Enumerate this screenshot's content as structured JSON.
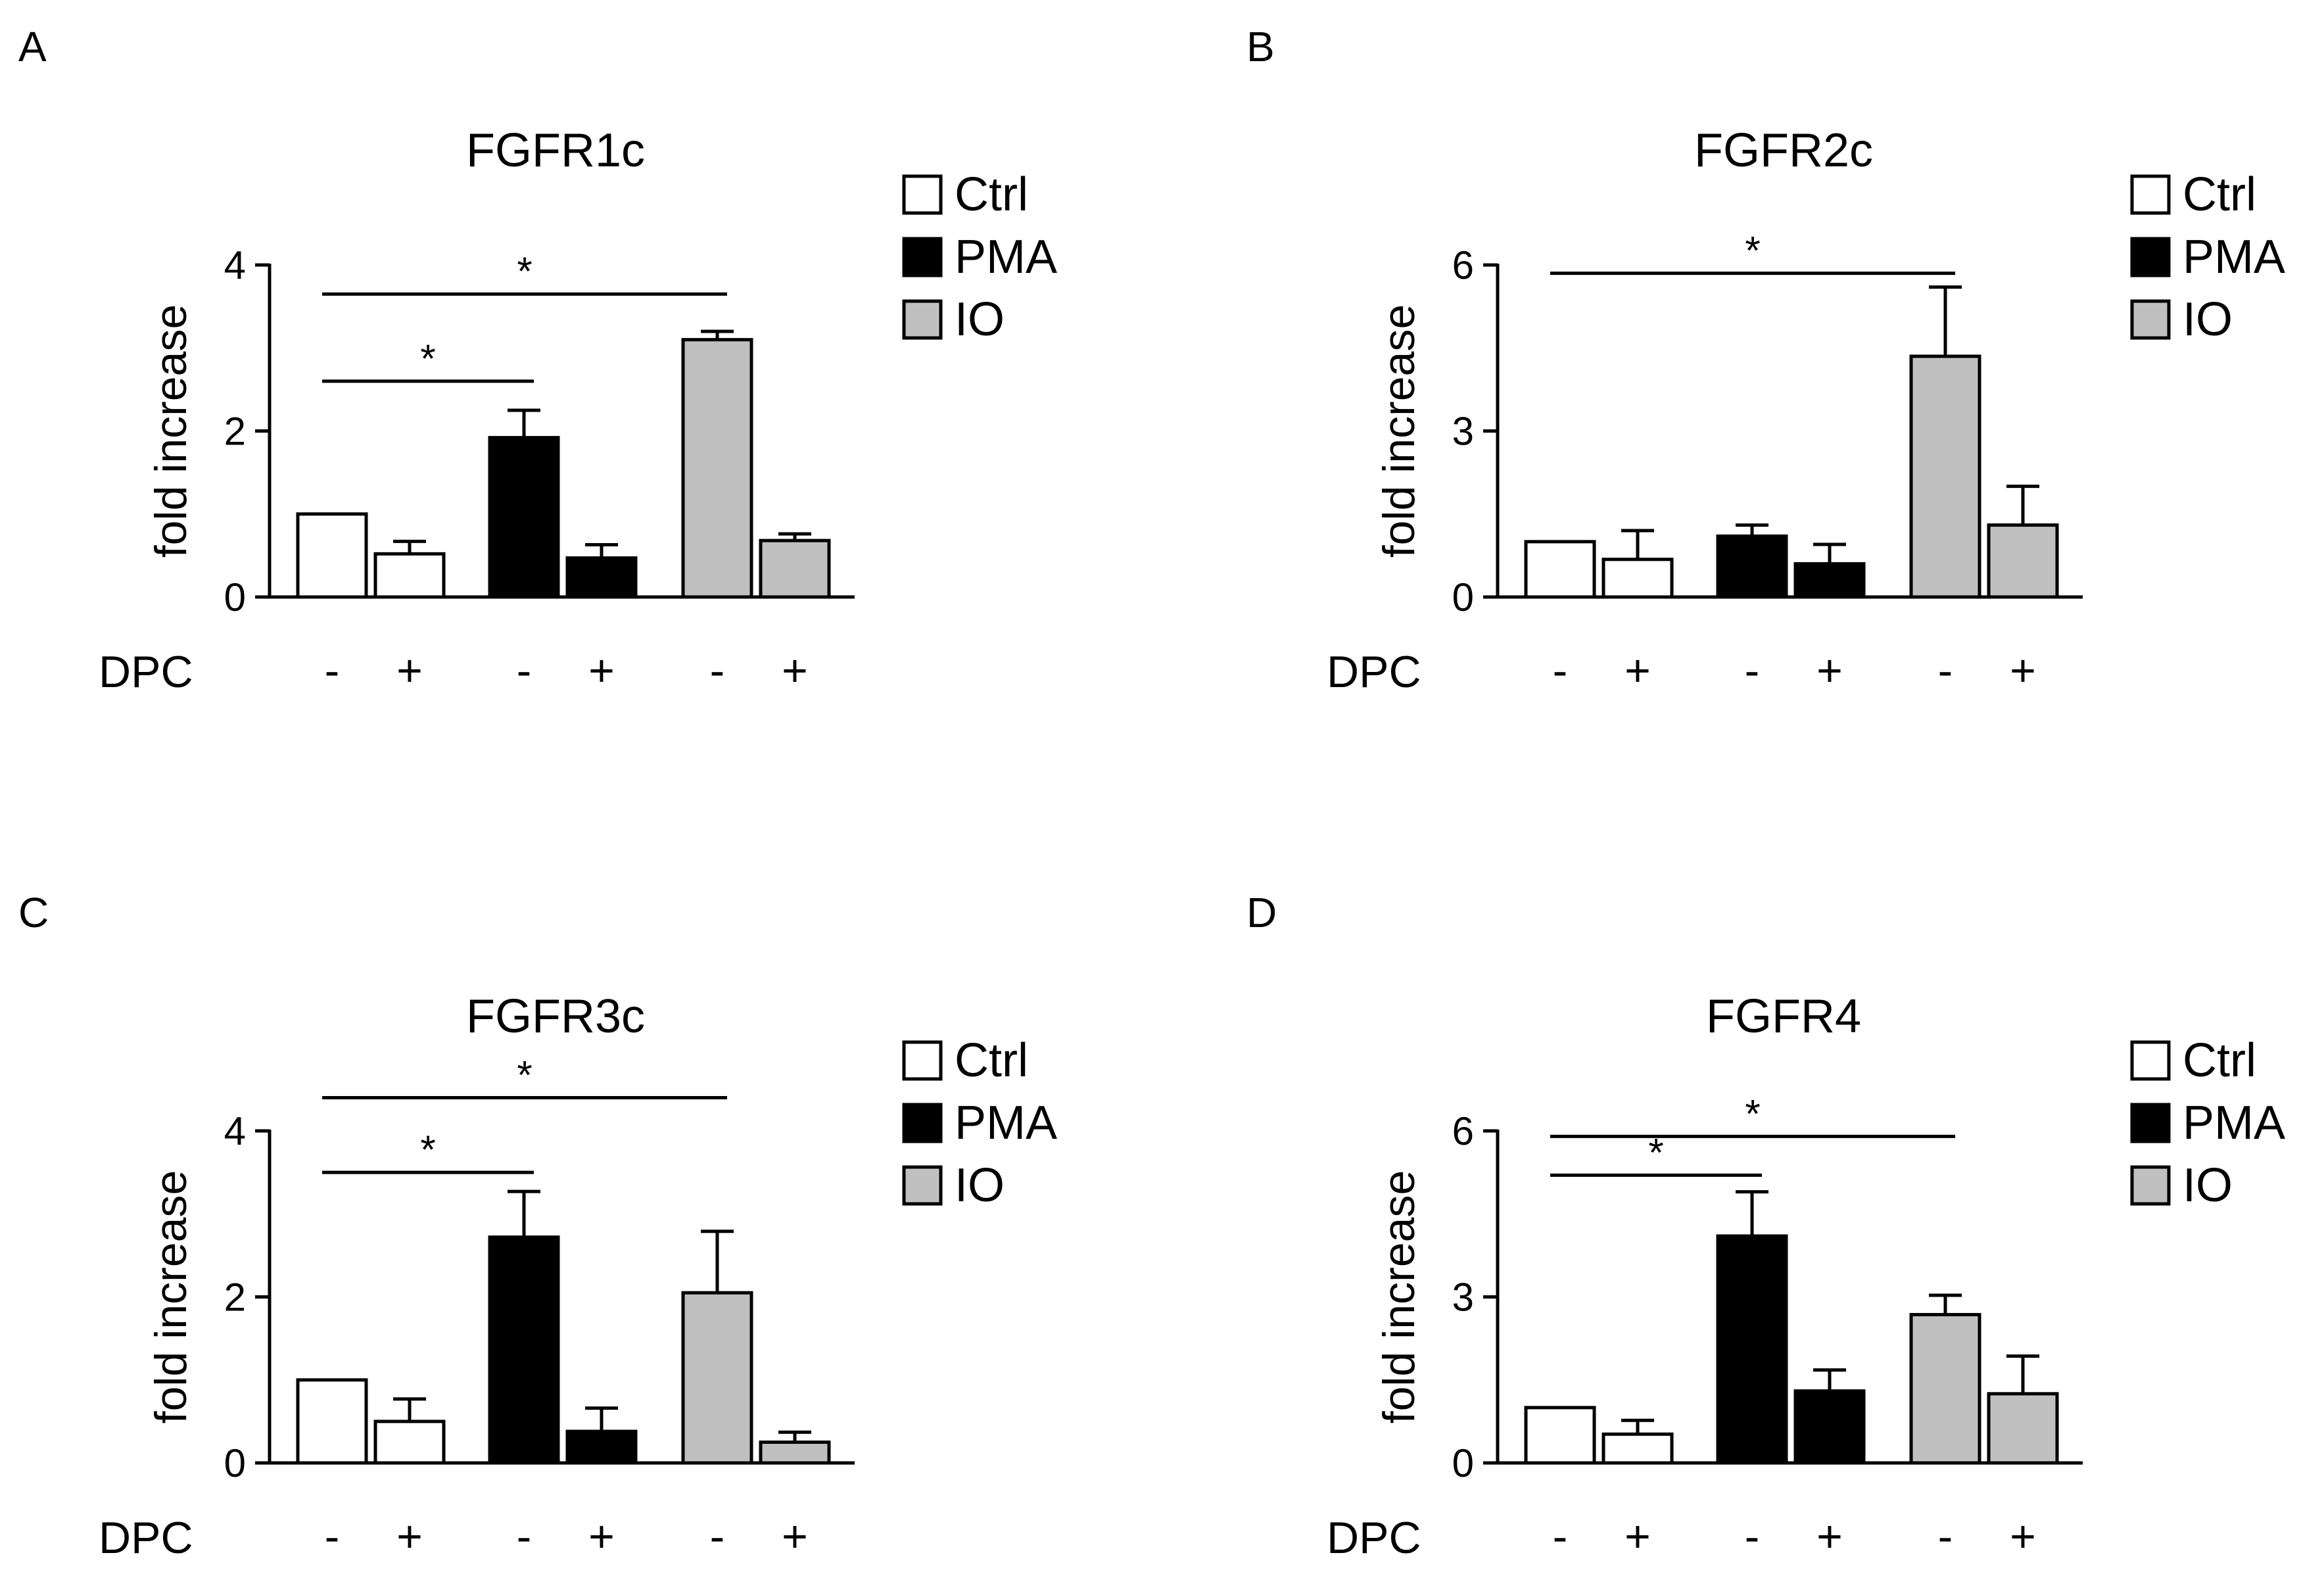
{
  "figure": {
    "treatment_label": "DPC",
    "legend": [
      {
        "label": "Ctrl",
        "color": "#ffffff"
      },
      {
        "label": "PMA",
        "color": "#000000"
      },
      {
        "label": "IO",
        "color": "#c0c0c0"
      }
    ]
  },
  "chart_data": [
    {
      "panel": "A",
      "type": "bar",
      "title": "FGFR1c",
      "ylabel": "fold increase",
      "ylim": [
        0,
        4
      ],
      "yticks": [
        0,
        2,
        4
      ],
      "dpc": [
        "-",
        "+",
        "-",
        "+",
        "-",
        "+"
      ],
      "groups": [
        "Ctrl",
        "Ctrl",
        "PMA",
        "PMA",
        "IO",
        "IO"
      ],
      "values": [
        1.0,
        0.52,
        1.92,
        0.47,
        3.1,
        0.68
      ],
      "errors": [
        0,
        0.15,
        0.33,
        0.16,
        0.1,
        0.08
      ],
      "significance": [
        {
          "from": 0,
          "to": 2,
          "label": "*",
          "y": 2.6
        },
        {
          "from": 0,
          "to": 4,
          "label": "*",
          "y": 3.65
        }
      ]
    },
    {
      "panel": "B",
      "type": "bar",
      "title": "FGFR2c",
      "ylabel": "fold increase",
      "ylim": [
        0,
        6
      ],
      "yticks": [
        0,
        3,
        6
      ],
      "dpc": [
        "-",
        "+",
        "-",
        "+",
        "-",
        "+"
      ],
      "groups": [
        "Ctrl",
        "Ctrl",
        "PMA",
        "PMA",
        "IO",
        "IO"
      ],
      "values": [
        1.0,
        0.68,
        1.1,
        0.6,
        4.35,
        1.3
      ],
      "errors": [
        0,
        0.52,
        0.2,
        0.35,
        1.25,
        0.7
      ],
      "significance": [
        {
          "from": 0,
          "to": 4,
          "label": "*",
          "y": 5.85
        }
      ]
    },
    {
      "panel": "C",
      "type": "bar",
      "title": "FGFR3c",
      "ylabel": "fold increase",
      "ylim": [
        0,
        4
      ],
      "yticks": [
        0,
        2,
        4
      ],
      "dpc": [
        "-",
        "+",
        "-",
        "+",
        "-",
        "+"
      ],
      "groups": [
        "Ctrl",
        "Ctrl",
        "PMA",
        "PMA",
        "IO",
        "IO"
      ],
      "values": [
        1.0,
        0.5,
        2.72,
        0.38,
        2.05,
        0.25
      ],
      "errors": [
        0,
        0.27,
        0.55,
        0.28,
        0.74,
        0.12
      ],
      "significance": [
        {
          "from": 0,
          "to": 2,
          "label": "*",
          "y": 3.5
        },
        {
          "from": 0,
          "to": 4,
          "label": "*",
          "y": 4.4
        }
      ]
    },
    {
      "panel": "D",
      "type": "bar",
      "title": "FGFR4",
      "ylabel": "fold increase",
      "ylim": [
        0,
        6
      ],
      "yticks": [
        0,
        3,
        6
      ],
      "dpc": [
        "-",
        "+",
        "-",
        "+",
        "-",
        "+"
      ],
      "groups": [
        "Ctrl",
        "Ctrl",
        "PMA",
        "PMA",
        "IO",
        "IO"
      ],
      "values": [
        1.0,
        0.52,
        4.1,
        1.3,
        2.68,
        1.25
      ],
      "errors": [
        0,
        0.25,
        0.8,
        0.38,
        0.35,
        0.68
      ],
      "significance": [
        {
          "from": 0,
          "to": 2,
          "label": "*",
          "y": 5.2
        },
        {
          "from": 0,
          "to": 4,
          "label": "*",
          "y": 5.9
        }
      ]
    }
  ]
}
